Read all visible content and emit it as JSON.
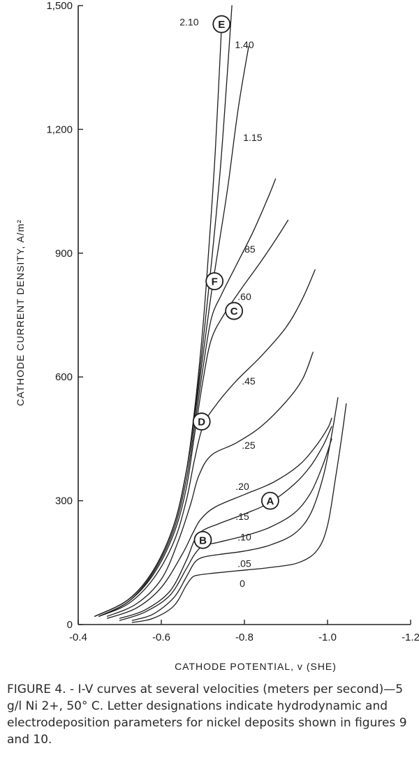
{
  "caption": {
    "label": "FIGURE 4. -",
    "text": "I-V curves at several velocities (meters per second)—5 g/l Ni 2+, 50° C. Letter designations indicate hydrodynamic and electrodeposition parameters for nickel deposits shown in figures 9 and 10."
  },
  "chart_data": {
    "type": "line",
    "title": "",
    "xlabel": "CATHODE POTENTIAL, v (SHE)",
    "ylabel": "CATHODE CURRENT DENSITY, A/m²",
    "xlim": [
      -0.4,
      -1.2
    ],
    "ylim": [
      0,
      1500
    ],
    "xticks": [
      -0.4,
      -0.6,
      -0.8,
      -1.0,
      -1.2
    ],
    "xtick_labels": [
      "-0.4",
      "-0.6",
      "-0.8",
      "-1.0",
      "-1.2"
    ],
    "yticks": [
      0,
      300,
      600,
      900,
      1200,
      1500
    ],
    "ytick_labels": [
      "0",
      "300",
      "600",
      "900",
      "1,200",
      "1,500"
    ],
    "grid": false,
    "series": [
      {
        "name": "0",
        "label_at": [
          -0.795,
          100
        ],
        "x": [
          -0.53,
          -0.58,
          -0.63,
          -0.66,
          -0.675,
          -0.69,
          -0.72,
          -0.78,
          -0.86,
          -0.93,
          -0.975,
          -1.0,
          -1.02,
          -1.035,
          -1.045
        ],
        "y": [
          5,
          15,
          45,
          95,
          115,
          120,
          124,
          130,
          138,
          150,
          180,
          240,
          360,
          460,
          535
        ]
      },
      {
        "name": ".05",
        "label_at": [
          -0.8,
          148
        ],
        "x": [
          -0.53,
          -0.58,
          -0.63,
          -0.66,
          -0.68,
          -0.7,
          -0.74,
          -0.8,
          -0.86,
          -0.92,
          -0.96,
          -0.99,
          -1.01,
          -1.025
        ],
        "y": [
          10,
          25,
          65,
          115,
          150,
          163,
          170,
          178,
          192,
          220,
          270,
          360,
          460,
          550
        ]
      },
      {
        "name": ".10",
        "label_at": [
          -0.8,
          212
        ],
        "x": [
          -0.5,
          -0.56,
          -0.62,
          -0.66,
          -0.68,
          -0.7,
          -0.74,
          -0.8,
          -0.86,
          -0.92,
          -0.96,
          -0.99,
          -1.01
        ],
        "y": [
          10,
          30,
          70,
          135,
          170,
          190,
          200,
          215,
          235,
          270,
          320,
          390,
          450
        ]
      },
      {
        "name": ".15",
        "label_at": [
          -0.795,
          262
        ],
        "x": [
          -0.5,
          -0.56,
          -0.62,
          -0.66,
          -0.68,
          -0.7,
          -0.74,
          -0.8,
          -0.86,
          -0.92,
          -0.96,
          -0.99,
          -1.01
        ],
        "y": [
          15,
          35,
          80,
          155,
          205,
          228,
          245,
          268,
          295,
          340,
          385,
          435,
          480
        ]
      },
      {
        "name": ".20",
        "label_at": [
          -0.795,
          335
        ],
        "x": [
          -0.47,
          -0.54,
          -0.6,
          -0.65,
          -0.675,
          -0.695,
          -0.73,
          -0.8,
          -0.87,
          -0.93,
          -0.97,
          -1.0,
          -1.01
        ],
        "y": [
          15,
          40,
          90,
          170,
          220,
          255,
          285,
          315,
          345,
          385,
          430,
          475,
          500
        ]
      },
      {
        "name": ".25",
        "label_at": [
          -0.81,
          435
        ],
        "x": [
          -0.47,
          -0.54,
          -0.6,
          -0.64,
          -0.67,
          -0.69,
          -0.72,
          -0.78,
          -0.84,
          -0.9,
          -0.94,
          -0.965
        ],
        "y": [
          20,
          50,
          110,
          200,
          290,
          360,
          410,
          440,
          480,
          540,
          595,
          660
        ]
      },
      {
        "name": ".45",
        "label_at": [
          -0.81,
          590
        ],
        "x": [
          -0.45,
          -0.52,
          -0.58,
          -0.63,
          -0.66,
          -0.68,
          -0.7,
          -0.73,
          -0.78,
          -0.84,
          -0.9,
          -0.94,
          -0.97
        ],
        "y": [
          20,
          50,
          110,
          200,
          300,
          400,
          480,
          530,
          590,
          650,
          720,
          790,
          860
        ]
      },
      {
        "name": ".60",
        "label_at": [
          -0.8,
          795
        ],
        "x": [
          -0.45,
          -0.52,
          -0.58,
          -0.63,
          -0.66,
          -0.68,
          -0.7,
          -0.72,
          -0.75,
          -0.79,
          -0.84,
          -0.88,
          -0.905
        ],
        "y": [
          20,
          55,
          120,
          220,
          330,
          460,
          590,
          690,
          750,
          810,
          880,
          940,
          980
        ]
      },
      {
        "name": ".85",
        "label_at": [
          -0.81,
          910
        ],
        "x": [
          -0.45,
          -0.52,
          -0.58,
          -0.63,
          -0.66,
          -0.68,
          -0.7,
          -0.72,
          -0.745,
          -0.78,
          -0.82,
          -0.855,
          -0.875
        ],
        "y": [
          20,
          55,
          125,
          230,
          350,
          480,
          620,
          740,
          800,
          870,
          950,
          1030,
          1080
        ]
      },
      {
        "name": "1.15",
        "label_at": [
          -0.82,
          1180
        ],
        "x": [
          -0.44,
          -0.52,
          -0.58,
          -0.63,
          -0.66,
          -0.68,
          -0.7,
          -0.72,
          -0.74,
          -0.76,
          -0.785,
          -0.81
        ],
        "y": [
          20,
          60,
          130,
          240,
          370,
          500,
          650,
          800,
          930,
          1060,
          1250,
          1400
        ]
      },
      {
        "name": "1.40",
        "label_at": [
          -0.8,
          1405
        ],
        "x": [
          -0.44,
          -0.52,
          -0.58,
          -0.63,
          -0.66,
          -0.68,
          -0.7,
          -0.72,
          -0.74,
          -0.755,
          -0.77
        ],
        "y": [
          20,
          60,
          130,
          240,
          370,
          510,
          680,
          870,
          1080,
          1280,
          1500
        ]
      },
      {
        "name": "2.10",
        "label_at": [
          -0.667,
          1460
        ],
        "x": [
          -0.44,
          -0.52,
          -0.58,
          -0.63,
          -0.66,
          -0.68,
          -0.7,
          -0.715,
          -0.73,
          -0.745
        ],
        "y": [
          20,
          60,
          130,
          240,
          370,
          520,
          720,
          920,
          1150,
          1450
        ]
      }
    ],
    "markers": [
      {
        "letter": "E",
        "x": -0.745,
        "y": 1455
      },
      {
        "letter": "F",
        "x": -0.728,
        "y": 832
      },
      {
        "letter": "C",
        "x": -0.775,
        "y": 760
      },
      {
        "letter": "D",
        "x": -0.697,
        "y": 492
      },
      {
        "letter": "A",
        "x": -0.862,
        "y": 300
      },
      {
        "letter": "B",
        "x": -0.7,
        "y": 205
      }
    ]
  }
}
